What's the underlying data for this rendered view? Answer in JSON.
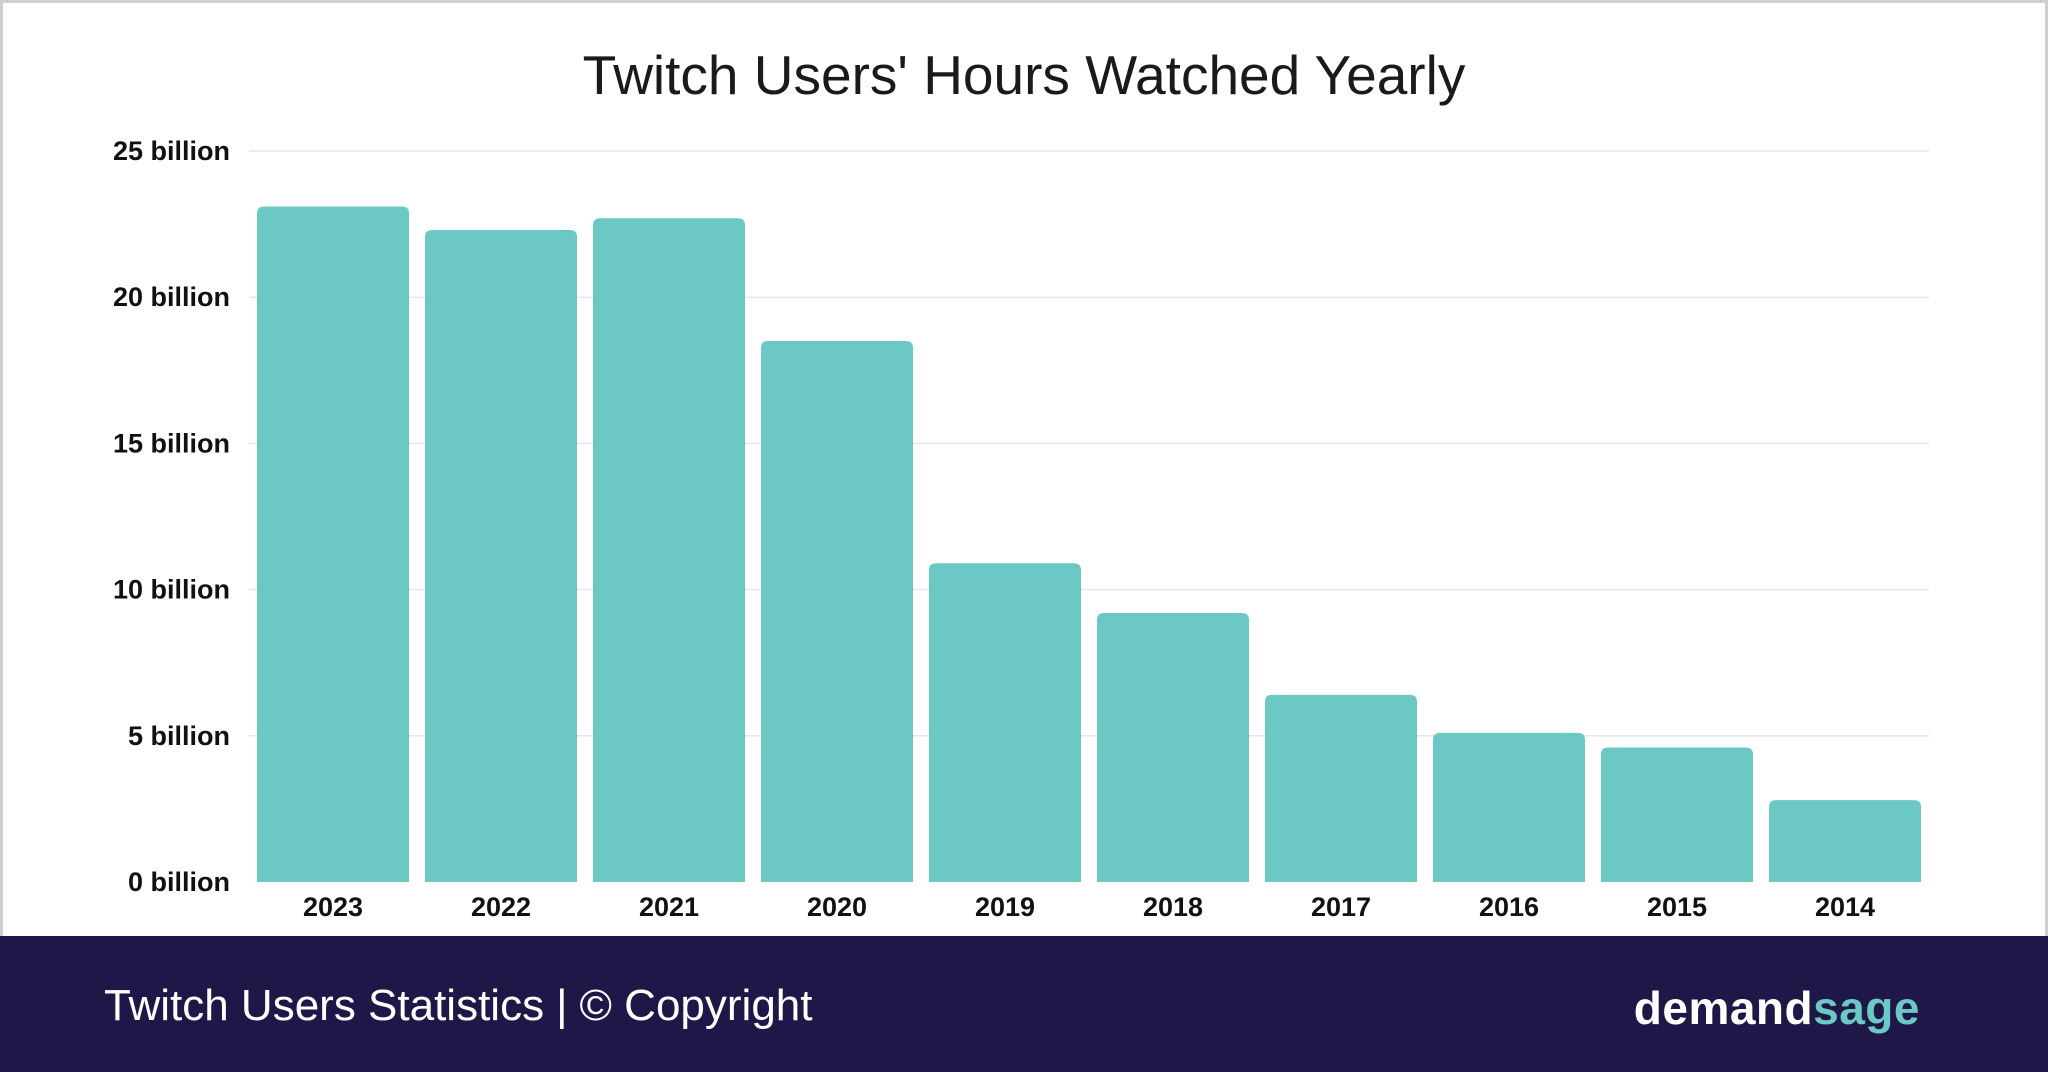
{
  "chart_data": {
    "type": "bar",
    "title": "Twitch Users' Hours Watched Yearly",
    "categories": [
      "2023",
      "2022",
      "2021",
      "2020",
      "2019",
      "2018",
      "2017",
      "2016",
      "2015",
      "2014"
    ],
    "values": [
      23.1,
      22.3,
      22.7,
      18.5,
      10.9,
      9.2,
      6.4,
      5.1,
      4.6,
      2.8
    ],
    "value_unit": "billion hours",
    "ylim": [
      0,
      25
    ],
    "y_ticks": [
      0,
      5,
      10,
      15,
      20,
      25
    ],
    "y_tick_labels": [
      "0 billion",
      "5 billion",
      "10 billion",
      "15 billion",
      "20 billion",
      "25 billion"
    ],
    "xlabel": "",
    "ylabel": "",
    "grid": true,
    "bar_color": "#6cc8c4"
  },
  "footer": {
    "left_text": "Twitch Users Statistics",
    "separator": "|",
    "copyright": "© Copyright",
    "brand_part1": "demand",
    "brand_part2": "sage",
    "background_color": "#1f1747"
  }
}
